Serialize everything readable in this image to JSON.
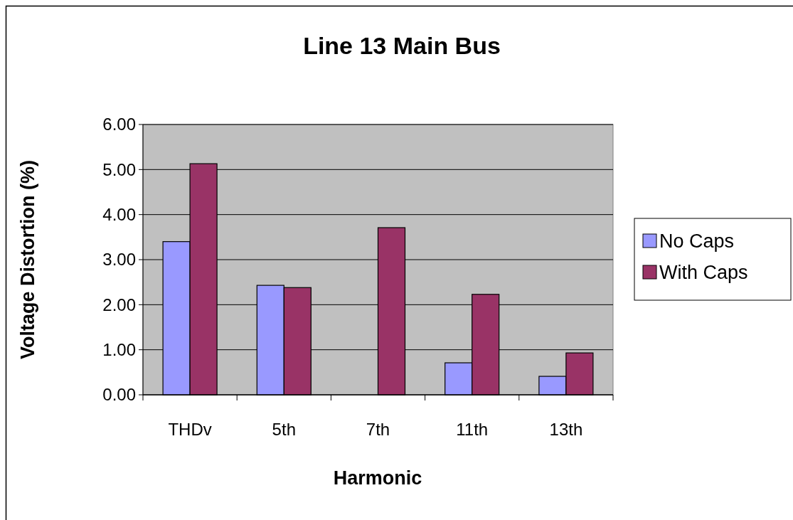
{
  "chart_data": {
    "type": "bar",
    "title": "Line 13 Main Bus",
    "xlabel": "Harmonic",
    "ylabel": "Voltage Distortion (%)",
    "categories": [
      "THDv",
      "5th",
      "7th",
      "11th",
      "13th"
    ],
    "series": [
      {
        "name": "No Caps",
        "color": "#9999ff",
        "values": [
          3.4,
          2.43,
          0,
          0.71,
          0.41
        ]
      },
      {
        "name": "With Caps",
        "color": "#993366",
        "values": [
          5.13,
          2.38,
          3.71,
          2.23,
          0.93
        ]
      }
    ],
    "ylim": [
      0,
      6
    ],
    "yticks": [
      {
        "value": 0,
        "label": "0.00"
      },
      {
        "value": 1,
        "label": "1.00"
      },
      {
        "value": 2,
        "label": "2.00"
      },
      {
        "value": 3,
        "label": "3.00"
      },
      {
        "value": 4,
        "label": "4.00"
      },
      {
        "value": 5,
        "label": "5.00"
      },
      {
        "value": 6,
        "label": "6.00"
      }
    ],
    "grid": "y",
    "legend": "right"
  }
}
